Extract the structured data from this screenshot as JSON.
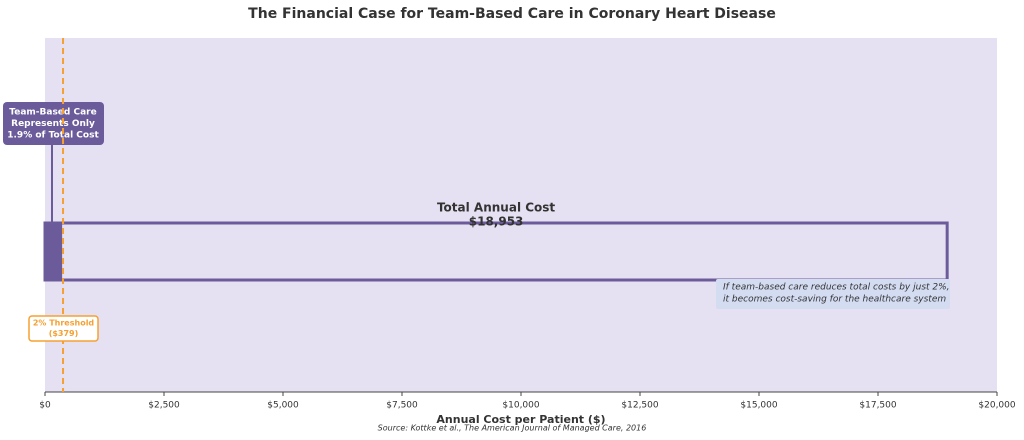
{
  "chart_data": {
    "type": "bar",
    "orientation": "horizontal",
    "title": "The Financial Case for Team-Based Care in Coronary Heart Disease",
    "x_label": "Annual Cost per Patient ($)",
    "source": "Source: Kottke et al., The American Journal of Managed Care, 2016",
    "xlim": [
      0,
      20000
    ],
    "xticks": [
      {
        "value": 0,
        "label": "$0"
      },
      {
        "value": 2500,
        "label": "$2,500"
      },
      {
        "value": 5000,
        "label": "$5,000"
      },
      {
        "value": 7500,
        "label": "$7,500"
      },
      {
        "value": 10000,
        "label": "$10,000"
      },
      {
        "value": 12500,
        "label": "$12,500"
      },
      {
        "value": 15000,
        "label": "$15,000"
      },
      {
        "value": 17500,
        "label": "$17,500"
      },
      {
        "value": 20000,
        "label": "$20,000"
      }
    ],
    "background": "#e6e1f2",
    "bars": [
      {
        "label": "Total Annual Cost",
        "value": 18953,
        "value_label": "$18,953",
        "color": "#6b5b9a"
      },
      {
        "label": [
          "Team-Based Care",
          "Represents Only",
          "1.9% of Total Cost"
        ],
        "value": 360,
        "color": "#6b5b9a"
      }
    ],
    "threshold": {
      "value": 379,
      "label": [
        "2% Threshold",
        "($379)"
      ],
      "color": "#f5a031"
    },
    "note": [
      "If team-based care reduces total costs by just 2%,",
      "it becomes cost-saving for the healthcare system"
    ]
  }
}
